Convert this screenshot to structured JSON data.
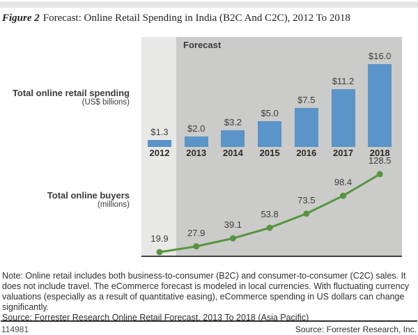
{
  "title": {
    "figure_label": "Figure 2",
    "text": "Forecast: Online Retail Spending in India (B2C And C2C), 2012 To 2018"
  },
  "axes": {
    "spending_label": "Total online retail spending",
    "spending_unit": "(US$ billions)",
    "buyers_label": "Total online buyers",
    "buyers_unit": "(millions)"
  },
  "chart_data": {
    "type": "combo",
    "categories": [
      "2012",
      "2013",
      "2014",
      "2015",
      "2016",
      "2017",
      "2018"
    ],
    "series": [
      {
        "name": "Total online retail spending (US$ billions)",
        "type": "bar",
        "values": [
          1.3,
          2.0,
          3.2,
          5.0,
          7.5,
          11.2,
          16.0
        ],
        "labels": [
          "$1.3",
          "$2.0",
          "$3.2",
          "$5.0",
          "$7.5",
          "$11.2",
          "$16.0"
        ],
        "color": "#5b94c8"
      },
      {
        "name": "Total online buyers (millions)",
        "type": "line",
        "values": [
          19.9,
          27.9,
          39.1,
          53.8,
          73.5,
          98.4,
          128.5
        ],
        "labels": [
          "19.9",
          "27.9",
          "39.1",
          "53.8",
          "73.5",
          "98.4",
          "128.5"
        ],
        "color": "#569540"
      }
    ],
    "forecast_region": {
      "from": "2013",
      "to": "2018",
      "label": "Forecast"
    },
    "bar_ylim": [
      0,
      16
    ],
    "line_ylim": [
      19.9,
      128.5
    ],
    "grid": false,
    "legend_position": "none"
  },
  "note": {
    "lines": [
      "Note: Online retail includes both business-to-consumer (B2C) and consumer-to-consumer (C2C) sales. It",
      "does not include travel. The eCommerce forecast is modeled in local currencies. With fluctuating currency",
      "valuations (especially as a result of quantitative easing), eCommerce spending in US dollars can change",
      "significantly."
    ],
    "source_line": "Source: Forrester Research Online Retail Forecast, 2013 To 2018 (Asia Pacific)"
  },
  "footer": {
    "doc_number": "114981",
    "source": "Source: Forrester Research, Inc."
  },
  "colors": {
    "bar": "#5b94c8",
    "line": "#569540",
    "forecast_bg": "#cbcbc9",
    "baseline_bg": "#e8e8e6"
  }
}
